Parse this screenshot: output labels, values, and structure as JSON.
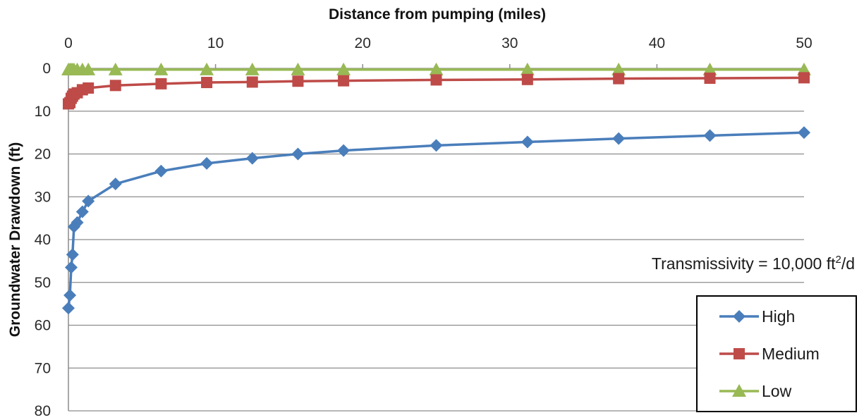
{
  "chart_data": {
    "type": "line",
    "xlabel": "Distance from pumping (miles)",
    "ylabel": "Groundwater Drawdown (ft)",
    "x_axis_position": "top",
    "y_axis_inverted": true,
    "xlim": [
      0,
      50
    ],
    "ylim": [
      0,
      80
    ],
    "x_ticks": [
      "0",
      "10",
      "20",
      "30",
      "40",
      "50"
    ],
    "y_ticks": [
      "0",
      "10",
      "20",
      "30",
      "40",
      "50",
      "60",
      "70",
      "80"
    ],
    "grid": "horizontal",
    "legend_position": "bottom-right",
    "annotation": {
      "prefix": "Transmissivity = 10,000 ft",
      "superscript": "2",
      "suffix": "/d"
    },
    "series": [
      {
        "name": "High",
        "color": "#4a7ebb",
        "marker": "diamond",
        "x": [
          0.0,
          0.1,
          0.19,
          0.28,
          0.38,
          0.6,
          0.95,
          1.35,
          3.2,
          6.3,
          9.4,
          12.5,
          15.6,
          18.7,
          25,
          31.2,
          37.4,
          43.6,
          50
        ],
        "y": [
          56,
          53,
          46.5,
          43.5,
          37,
          36,
          33.5,
          31,
          27,
          24,
          22.2,
          21,
          20,
          19.2,
          18,
          17.2,
          16.4,
          15.7,
          15
        ]
      },
      {
        "name": "Medium",
        "color": "#be4b48",
        "marker": "square",
        "x": [
          0.0,
          0.1,
          0.19,
          0.28,
          0.38,
          0.6,
          0.95,
          1.35,
          3.2,
          6.3,
          9.4,
          12.5,
          15.6,
          18.7,
          25,
          31.2,
          37.4,
          43.6,
          50
        ],
        "y": [
          8.3,
          8,
          7,
          6.5,
          6,
          5.7,
          5,
          4.6,
          4,
          3.6,
          3.3,
          3.2,
          3,
          2.9,
          2.7,
          2.6,
          2.4,
          2.3,
          2.2
        ]
      },
      {
        "name": "Low",
        "color": "#98b954",
        "marker": "triangle",
        "x": [
          0.0,
          0.1,
          0.19,
          0.28,
          0.38,
          0.6,
          0.95,
          1.35,
          3.2,
          6.3,
          9.4,
          12.5,
          15.6,
          18.7,
          25,
          31.2,
          37.4,
          43.6,
          50
        ],
        "y": [
          0.3,
          0.3,
          0.3,
          0.3,
          0.3,
          0.3,
          0.3,
          0.3,
          0.3,
          0.3,
          0.3,
          0.3,
          0.3,
          0.3,
          0.3,
          0.3,
          0.3,
          0.3,
          0.3
        ]
      }
    ]
  }
}
